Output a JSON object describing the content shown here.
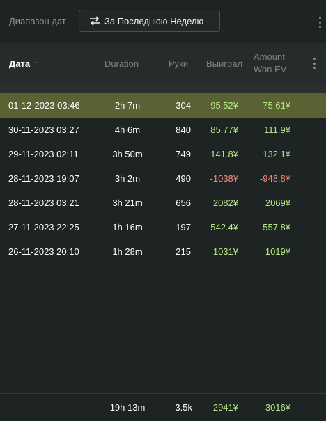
{
  "toolbar": {
    "range_label": "Диапазон дат",
    "range_button_label": "За Последнюю Неделю",
    "range_button_icon": "swap-arrows-icon",
    "menu_icon": "kebab-menu-icon"
  },
  "table": {
    "columns": {
      "date": "Дата",
      "date_sort": "↑",
      "duration": "Duration",
      "hands": "Руки",
      "won": "Выиграл",
      "amount_won_ev_line1": "Amount",
      "amount_won_ev_line2": "Won EV"
    },
    "rows": [
      {
        "date": "01-12-2023 03:46",
        "duration": "2h 7m",
        "hands": "304",
        "won": "95.52¥",
        "won_ev": "75.61¥",
        "won_sign": "pos",
        "ev_sign": "pos",
        "selected": true
      },
      {
        "date": "30-11-2023 03:27",
        "duration": "4h 6m",
        "hands": "840",
        "won": "85.77¥",
        "won_ev": "111.9¥",
        "won_sign": "pos",
        "ev_sign": "pos",
        "selected": false
      },
      {
        "date": "29-11-2023 02:11",
        "duration": "3h 50m",
        "hands": "749",
        "won": "141.8¥",
        "won_ev": "132.1¥",
        "won_sign": "pos",
        "ev_sign": "pos",
        "selected": false
      },
      {
        "date": "28-11-2023 19:07",
        "duration": "3h 2m",
        "hands": "490",
        "won": "-1038¥",
        "won_ev": "-948.8¥",
        "won_sign": "neg",
        "ev_sign": "neg",
        "selected": false
      },
      {
        "date": "28-11-2023 03:21",
        "duration": "3h 21m",
        "hands": "656",
        "won": "2082¥",
        "won_ev": "2069¥",
        "won_sign": "pos",
        "ev_sign": "pos",
        "selected": false
      },
      {
        "date": "27-11-2023 22:25",
        "duration": "1h 16m",
        "hands": "197",
        "won": "542.4¥",
        "won_ev": "557.8¥",
        "won_sign": "pos",
        "ev_sign": "pos",
        "selected": false
      },
      {
        "date": "26-11-2023 20:10",
        "duration": "1h 28m",
        "hands": "215",
        "won": "1031¥",
        "won_ev": "1019¥",
        "won_sign": "pos",
        "ev_sign": "pos",
        "selected": false
      }
    ],
    "totals": {
      "duration": "19h 13m",
      "hands": "3.5k",
      "won": "2941¥",
      "won_ev": "3016¥"
    }
  },
  "colors": {
    "positive": "#b7e887",
    "negative": "#f08a78",
    "selected_row": "#5a6234"
  }
}
